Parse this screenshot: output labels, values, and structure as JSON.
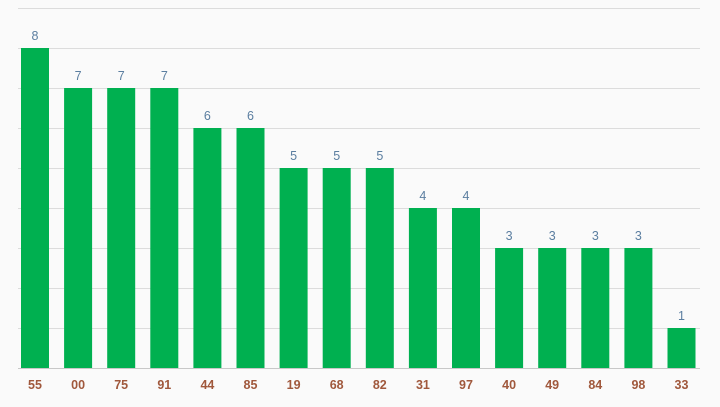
{
  "chart_data": {
    "type": "bar",
    "categories": [
      "55",
      "00",
      "75",
      "91",
      "44",
      "85",
      "19",
      "68",
      "82",
      "31",
      "97",
      "40",
      "49",
      "84",
      "98",
      "33"
    ],
    "values": [
      8,
      7,
      7,
      7,
      6,
      6,
      5,
      5,
      5,
      4,
      4,
      3,
      3,
      3,
      3,
      1
    ],
    "ylim": [
      0,
      9
    ],
    "grid": true,
    "bar_color": "#00b050",
    "value_label_color": "#5b7ea0",
    "category_label_color": "#a0583c",
    "title": "",
    "xlabel": "",
    "ylabel": ""
  }
}
